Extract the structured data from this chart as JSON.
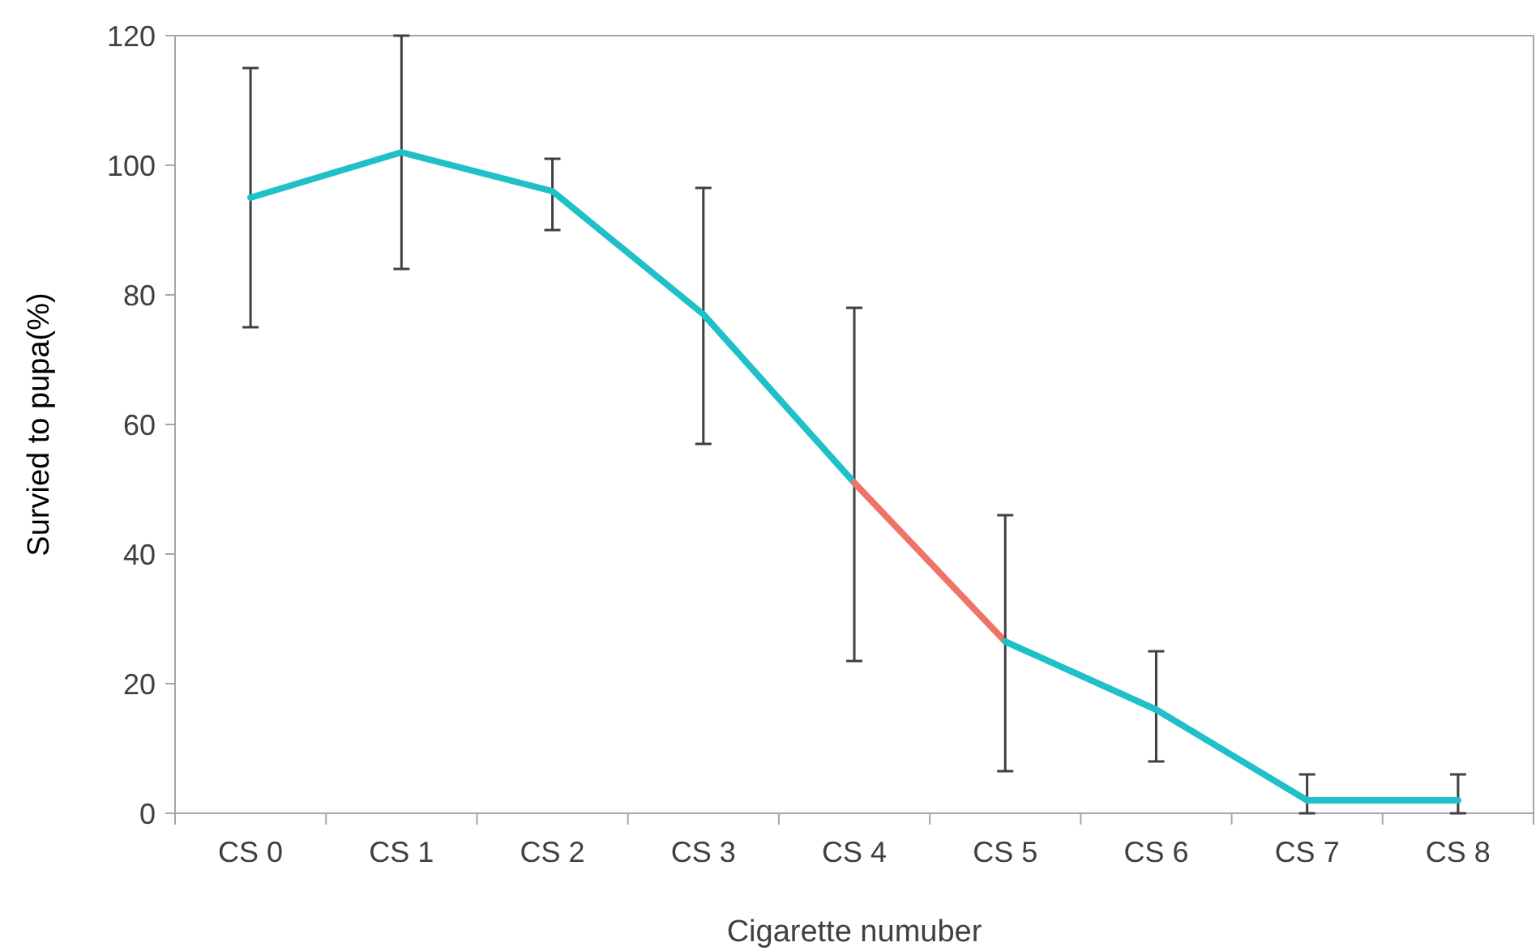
{
  "chart_data": {
    "type": "line",
    "xlabel": "Cigarette numuber",
    "ylabel": "Survied to pupa(%)",
    "categories": [
      "CS 0",
      "CS 1",
      "CS 2",
      "CS 3",
      "CS 4",
      "CS 5",
      "CS 6",
      "CS 7",
      "CS 8"
    ],
    "series": [
      {
        "color": "#1fc0c8",
        "values": [
          95,
          102,
          96,
          77,
          51,
          null,
          null,
          null,
          null
        ],
        "errors": [
          [
            75,
            115
          ],
          [
            84,
            120
          ],
          [
            90,
            101
          ],
          [
            57,
            96.5
          ],
          [
            23.5,
            78
          ],
          null,
          null,
          null,
          null
        ]
      },
      {
        "color": "#f07368",
        "values": [
          null,
          null,
          null,
          null,
          51,
          26.5,
          null,
          null,
          null
        ]
      },
      {
        "color": "#1fc0c8",
        "values": [
          null,
          null,
          null,
          null,
          null,
          26.5,
          16,
          2,
          2
        ],
        "errors": [
          null,
          null,
          null,
          null,
          null,
          [
            6.5,
            46
          ],
          [
            8,
            25
          ],
          [
            0,
            6
          ],
          [
            0,
            6
          ]
        ]
      }
    ],
    "ylim": [
      0,
      120
    ],
    "yticks": [
      0,
      20,
      40,
      60,
      80,
      100,
      120
    ],
    "grid": false,
    "line_style": "solid",
    "marker": "none"
  }
}
